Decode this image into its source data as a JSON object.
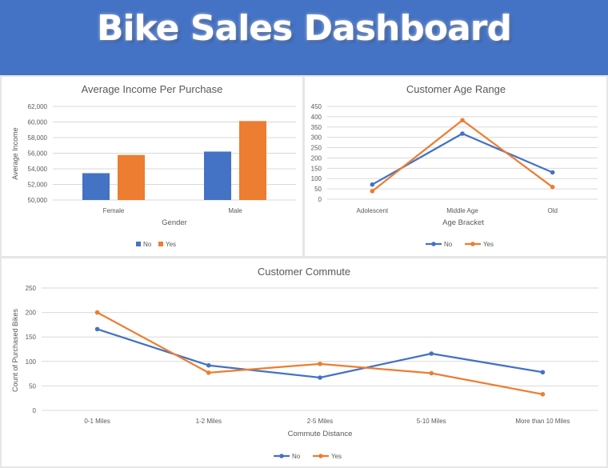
{
  "dashboard": {
    "title": "Bike Sales Dashboard"
  },
  "colors": {
    "no": "#4472c4",
    "yes": "#ed7d31",
    "grid": "#d9d9d9",
    "text": "#595959",
    "banner": "#4472c4"
  },
  "chart_data": [
    {
      "id": "income",
      "type": "bar",
      "title": "Average Income Per Purchase",
      "xlabel": "Gender",
      "ylabel": "Average Income",
      "categories": [
        "Female",
        "Male"
      ],
      "series": [
        {
          "name": "No",
          "values": [
            53440,
            56208
          ]
        },
        {
          "name": "Yes",
          "values": [
            55774,
            60124
          ]
        }
      ],
      "ylim": [
        50000,
        62000
      ],
      "yticks": [
        "50,000",
        "52,000",
        "54,000",
        "56,000",
        "58,000",
        "60,000",
        "62,000"
      ],
      "grid": true,
      "legend": "bottom"
    },
    {
      "id": "age",
      "type": "line",
      "title": "Customer Age Range",
      "xlabel": "Age Bracket",
      "ylabel": "",
      "categories": [
        "Adolescent",
        "Middle Age",
        "Old"
      ],
      "series": [
        {
          "name": "No",
          "values": [
            71,
            318,
            130
          ]
        },
        {
          "name": "Yes",
          "values": [
            39,
            383,
            59
          ]
        }
      ],
      "ylim": [
        0,
        450
      ],
      "yticks": [
        "0",
        "50",
        "100",
        "150",
        "200",
        "250",
        "300",
        "350",
        "400",
        "450"
      ],
      "grid": true,
      "legend": "bottom"
    },
    {
      "id": "commute",
      "type": "line",
      "title": "Customer Commute",
      "xlabel": "Commute Distance",
      "ylabel": "Count of Purchased Bikes",
      "categories": [
        "0-1 Miles",
        "1-2 Miles",
        "2-5 Miles",
        "5-10 Miles",
        "More than 10 Miles"
      ],
      "series": [
        {
          "name": "No",
          "values": [
            166,
            92,
            67,
            116,
            78
          ]
        },
        {
          "name": "Yes",
          "values": [
            200,
            77,
            95,
            76,
            33
          ]
        }
      ],
      "ylim": [
        0,
        250
      ],
      "yticks": [
        "0",
        "50",
        "100",
        "150",
        "200",
        "250"
      ],
      "grid": true,
      "legend": "bottom"
    }
  ]
}
